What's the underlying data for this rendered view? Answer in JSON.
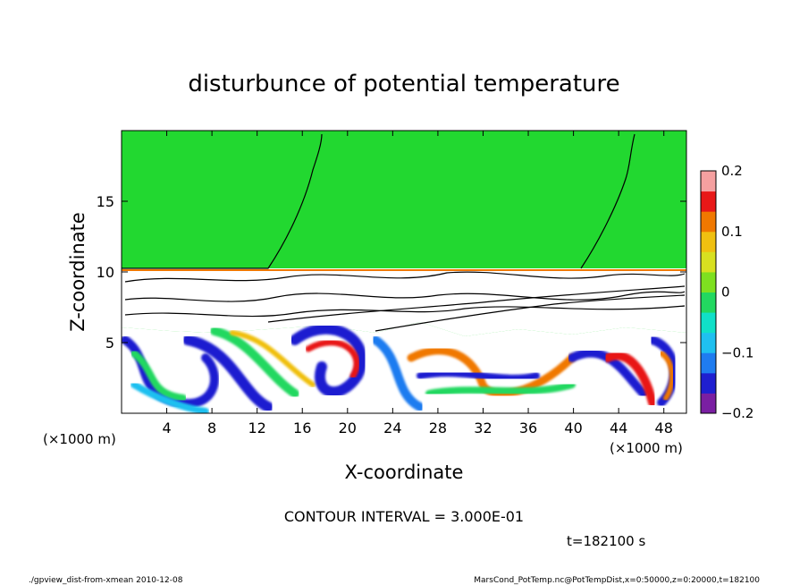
{
  "chart_data": {
    "type": "heatmap",
    "title": "disturbunce of potential temperature",
    "xlabel": "X-coordinate",
    "ylabel": "Z-coordinate",
    "x_unit_left": "(×1000 m)",
    "x_unit_right": "(×1000 m)",
    "xlim": [
      0,
      50
    ],
    "ylim": [
      0,
      20
    ],
    "x_ticks": [
      4,
      8,
      12,
      16,
      20,
      24,
      28,
      32,
      36,
      40,
      44,
      48
    ],
    "y_ticks": [
      5,
      10,
      15
    ],
    "colorbar": {
      "range": [
        -0.2,
        0.2
      ],
      "tick_values": [
        -0.2,
        -0.1,
        0,
        0.1,
        0.2
      ],
      "tick_labels": [
        "−0.2",
        "−0.1",
        "0",
        "0.1",
        "0.2"
      ],
      "colors": [
        "#7a1fa2",
        "#1f1fd0",
        "#1f7cf0",
        "#1fc0f0",
        "#10e0c8",
        "#22d860",
        "#7ee020",
        "#d8e020",
        "#f0c010",
        "#f07800",
        "#e81818",
        "#f5a0a0"
      ]
    },
    "contour_interval": "CONTOUR INTERVAL = 3.000E-01",
    "background_value": 0,
    "notes": {
      "time": "t=182100 s",
      "footer_left": "./gpview_dist-from-xmean   2010-12-08",
      "footer_right": "MarsCond_PotTemp.nc@PotTempDist,x=0:50000,z=0:20000,t=182100"
    }
  }
}
